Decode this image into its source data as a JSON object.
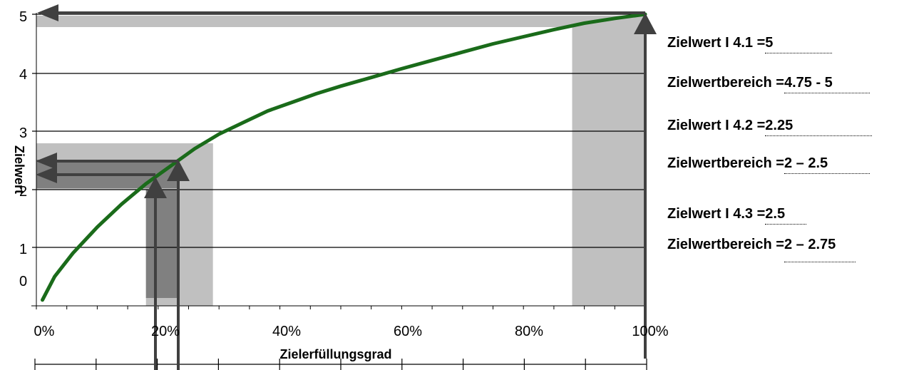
{
  "chart_data": {
    "type": "line",
    "xlabel": "Zielerfüllungsgrad",
    "ylabel": "Zielwert",
    "x_ticks": [
      "0%",
      "20%",
      "40%",
      "60%",
      "80%",
      "100%"
    ],
    "y_ticks": [
      "0",
      "1",
      "2",
      "3",
      "4",
      "5"
    ],
    "xlim": [
      0,
      100
    ],
    "ylim": [
      0,
      5
    ],
    "grid": "horizontal",
    "series": [
      {
        "color": "#1a6b1a",
        "x": [
          1,
          3,
          6,
          10,
          14,
          18,
          22,
          26,
          30,
          34,
          38,
          42,
          46,
          50,
          55,
          60,
          65,
          70,
          75,
          80,
          85,
          90,
          95,
          100
        ],
        "y": [
          0.1,
          0.5,
          0.9,
          1.35,
          1.75,
          2.1,
          2.4,
          2.7,
          2.95,
          3.15,
          3.35,
          3.5,
          3.65,
          3.78,
          3.93,
          4.08,
          4.22,
          4.36,
          4.5,
          4.62,
          4.74,
          4.85,
          4.93,
          5.0
        ]
      }
    ],
    "highlight_ranges": [
      {
        "x_range": [
          88,
          100
        ],
        "y_range": [
          4.75,
          5
        ]
      },
      {
        "x_range": [
          17,
          28
        ],
        "y_range": [
          2,
          2.75
        ]
      },
      {
        "x_range": [
          17,
          23
        ],
        "y_range": [
          2,
          2.5
        ]
      }
    ],
    "arrows": [
      {
        "x": 100,
        "y": 5
      },
      {
        "x": 20,
        "y": 2.25
      },
      {
        "x": 24,
        "y": 2.5
      }
    ],
    "colors": {
      "band": "#c0c0c0",
      "band_dark": "#808080",
      "arrow": "#404040",
      "line": "#1a6b1a"
    }
  },
  "annotations": [
    {
      "label": "Zielwert I 4.1 = ",
      "value": "5"
    },
    {
      "label": "Zielwertbereich = ",
      "value": "4.75 - 5"
    },
    {
      "label": "Zielwert I 4.2 = ",
      "value": "2.25"
    },
    {
      "label": "Zielwertbereich = ",
      "value": "2 – 2.5"
    },
    {
      "label": "Zielwert I 4.3 = ",
      "value": "2.5"
    },
    {
      "label": "Zielwertbereich = ",
      "value": "2 – 2.75"
    }
  ]
}
